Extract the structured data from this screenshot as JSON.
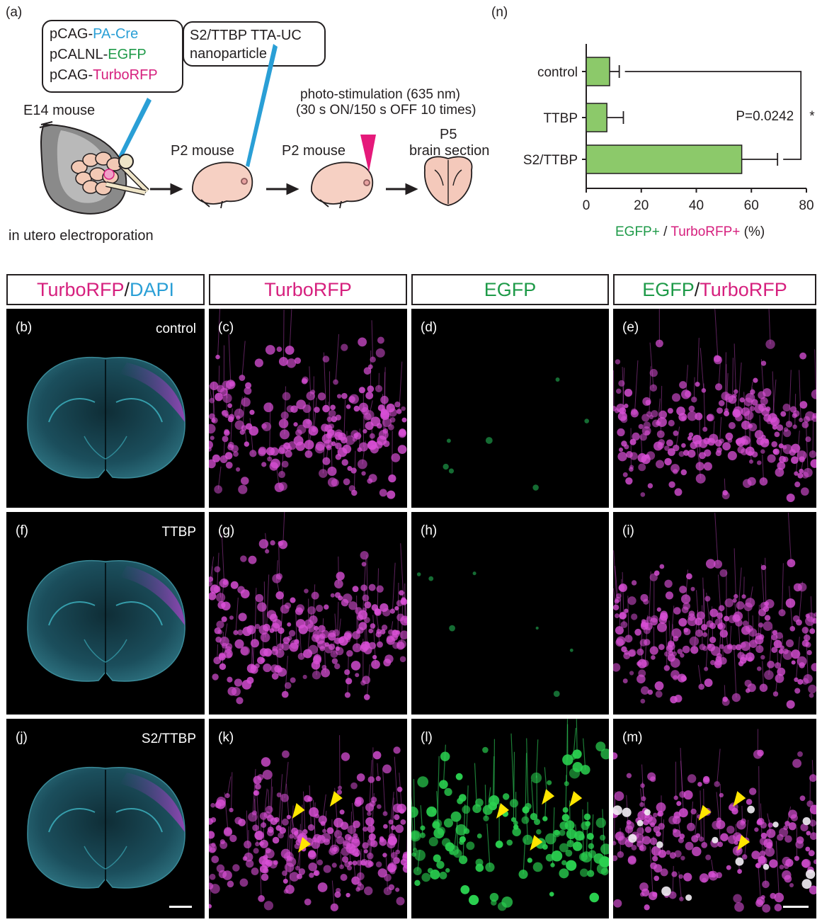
{
  "panel_a": {
    "label": "(a)",
    "plasmid_lines": [
      {
        "prefix": "pCAG-",
        "suffix": "PA-Cre",
        "color": "#2a9fd6"
      },
      {
        "prefix": "pCALNL-",
        "suffix": "EGFP",
        "color": "#1e9a48"
      },
      {
        "prefix": "pCAG-",
        "suffix": "TurboRFP",
        "color": "#d6207e"
      }
    ],
    "nanoparticle_line1": "S2/TTBP TTA-UC",
    "nanoparticle_line2": "nanoparticle",
    "e14": "E14 mouse",
    "p2a": "P2 mouse",
    "p2b": "P2 mouse",
    "stim1": "photo-stimulation (635 nm)",
    "stim2": "(30 s ON/150 s OFF 10 times)",
    "p5": "P5",
    "section": "brain section",
    "iue": "in utero electroporation"
  },
  "panel_n": {
    "label": "(n)",
    "pvalue": "P=0.0242",
    "star": "*",
    "xlabel_egfp": "EGFP+",
    "xlabel_sep": " / ",
    "xlabel_rfp": "TurboRFP+",
    "xlabel_unit": " (%)"
  },
  "chart_data": {
    "type": "bar",
    "orientation": "horizontal",
    "categories": [
      "control",
      "TTBP",
      "S2/TTBP"
    ],
    "values": [
      8.5,
      7.5,
      56.5
    ],
    "errors": [
      3.5,
      6.0,
      13.0
    ],
    "xlim": [
      0,
      80
    ],
    "xticks": [
      0,
      20,
      40,
      60,
      80
    ],
    "bar_color": "#8cc96a",
    "significance": {
      "label": "P=0.0242",
      "marker": "*",
      "between": [
        "control",
        "S2/TTBP"
      ]
    }
  },
  "headers": [
    {
      "a": "TurboRFP",
      "sep": " / ",
      "b": "DAPI",
      "ca": "#d6207e",
      "cb": "#2a9fd6"
    },
    {
      "a": "TurboRFP",
      "sep": "",
      "b": "",
      "ca": "#d6207e",
      "cb": "#d6207e"
    },
    {
      "a": "EGFP",
      "sep": "",
      "b": "",
      "ca": "#1e9a48",
      "cb": "#1e9a48"
    },
    {
      "a": "EGFP",
      "sep": " / ",
      "b": "TurboRFP",
      "ca": "#1e9a48",
      "cb": "#d6207e"
    }
  ],
  "panels": {
    "b": "(b)",
    "c": "(c)",
    "d": "(d)",
    "e": "(e)",
    "f": "(f)",
    "g": "(g)",
    "h": "(h)",
    "i": "(i)",
    "j": "(j)",
    "k": "(k)",
    "l": "(l)",
    "m": "(m)"
  },
  "conditions": {
    "row1": "control",
    "row2": "TTBP",
    "row3": "S2/TTBP"
  },
  "colors": {
    "magenta": "#d6207e",
    "green": "#1e9a48",
    "cyan": "#2a9fd6",
    "arrow": "#ffe600"
  }
}
